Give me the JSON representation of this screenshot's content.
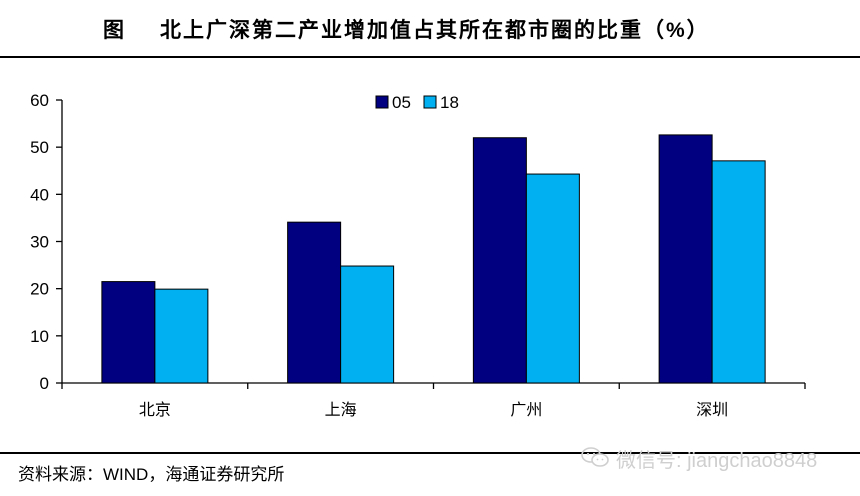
{
  "header": {
    "fig_label": "图",
    "title": "北上广深第二产业增加值占其所在都市圈的比重（%）"
  },
  "chart_data": {
    "type": "bar",
    "categories": [
      "北京",
      "上海",
      "广州",
      "深圳"
    ],
    "series": [
      {
        "name": "05",
        "values": [
          21.5,
          34.1,
          52.0,
          52.6
        ],
        "color": "#000080"
      },
      {
        "name": "18",
        "values": [
          19.9,
          24.8,
          44.3,
          47.1
        ],
        "color": "#00B0F0"
      }
    ],
    "ylim": [
      0,
      60
    ],
    "yticks": [
      0,
      10,
      20,
      30,
      40,
      50,
      60
    ],
    "legend_position": "top-center",
    "grid": false
  },
  "footer": {
    "source": "资料来源：WIND，海通证券研究所",
    "watermark": "微信号: jiangchao8848",
    "watermark_icon": "wechat-icon"
  }
}
